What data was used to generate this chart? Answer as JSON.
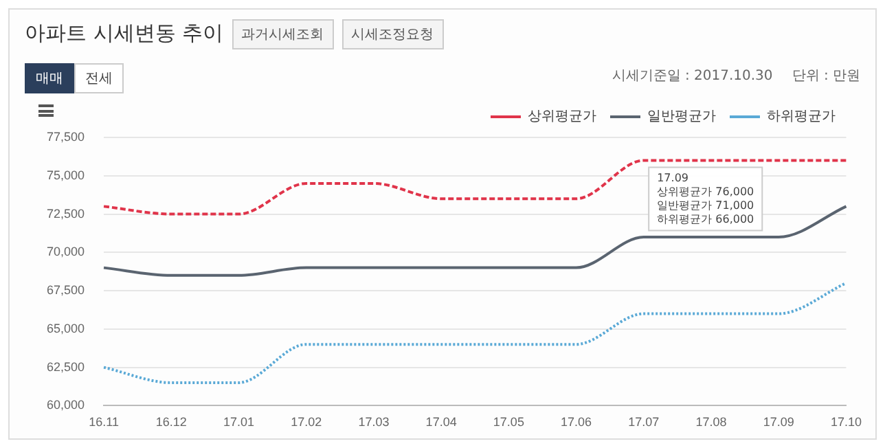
{
  "chart_data": {
    "type": "line",
    "title": "아파트 시세변동 추이",
    "categories": [
      "16.11",
      "16.12",
      "17.01",
      "17.02",
      "17.03",
      "17.04",
      "17.05",
      "17.06",
      "17.07",
      "17.08",
      "17.09",
      "17.10"
    ],
    "series": [
      {
        "name": "상위평균가",
        "color": "#e0344a",
        "line_style": "dashed",
        "values": [
          73000,
          72500,
          72500,
          74500,
          74500,
          73500,
          73500,
          73500,
          76000,
          76000,
          76000,
          76000
        ]
      },
      {
        "name": "일반평균가",
        "color": "#5a6470",
        "line_style": "solid",
        "values": [
          69000,
          68500,
          68500,
          69000,
          69000,
          69000,
          69000,
          69000,
          71000,
          71000,
          71000,
          73000
        ]
      },
      {
        "name": "하위평균가",
        "color": "#5aa9d6",
        "line_style": "dotted",
        "values": [
          62500,
          61500,
          61500,
          64000,
          64000,
          64000,
          64000,
          64000,
          66000,
          66000,
          66000,
          68000
        ]
      }
    ],
    "ylim": [
      60000,
      77500
    ],
    "yticks": [
      {
        "value": 60000,
        "label": "60,000"
      },
      {
        "value": 62500,
        "label": "62,500"
      },
      {
        "value": 65000,
        "label": "65,000"
      },
      {
        "value": 67500,
        "label": "67,500"
      },
      {
        "value": 70000,
        "label": "70,000"
      },
      {
        "value": 72500,
        "label": "72,500"
      },
      {
        "value": 75000,
        "label": "75,000"
      },
      {
        "value": 77500,
        "label": "77,500"
      }
    ],
    "grid": "y",
    "legend": "top right",
    "marker": "none",
    "annotations": [
      "과거시세조회",
      "시세조정요청",
      "매매",
      "전세",
      "시세기준일 : 2017.10.30",
      "단위 : 만원",
      {
        "text": "17.09\n상위평균가 76,000\n일반평균가 71,000\n하위평균가 66,000",
        "x": "17.09",
        "y": 76000
      }
    ]
  }
}
